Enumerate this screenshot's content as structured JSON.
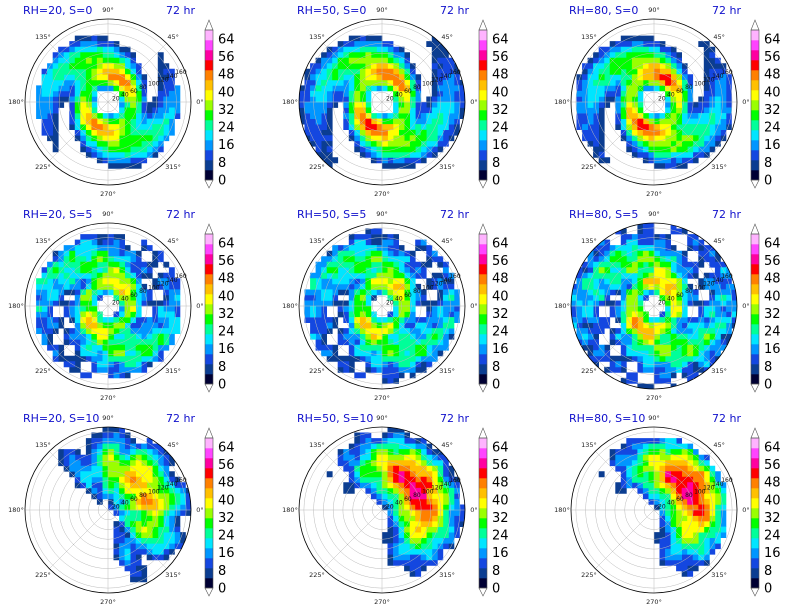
{
  "colors": {
    "title": "#1111cc",
    "levels": [
      "#000033",
      "#0b3d91",
      "#1447e0",
      "#0096ff",
      "#00e5ff",
      "#00ff99",
      "#00ff00",
      "#9aff00",
      "#ffff00",
      "#ffc000",
      "#ff8000",
      "#ff0000",
      "#ff00a0",
      "#ff44ff",
      "#ffb3ff"
    ]
  },
  "chart_data": {
    "type": "polar-contourf",
    "hours_label": "72 hr",
    "angle_labels": [
      "90°",
      "45°",
      "0°",
      "315°",
      "270°",
      "225°",
      "180°",
      "135°"
    ],
    "radial_ticks": [
      20,
      40,
      60,
      80,
      100,
      120,
      140,
      160
    ],
    "colorbar_ticks": [
      0,
      8,
      16,
      24,
      32,
      40,
      48,
      56,
      64
    ],
    "colorbar_range": [
      0,
      68
    ],
    "rows": [
      "S=0",
      "S=5",
      "S=10"
    ],
    "cols": [
      "RH=20",
      "RH=50",
      "RH=80"
    ],
    "panels": [
      {
        "title": "RH=20, S=0",
        "hours": "72 hr",
        "pattern": "spiral",
        "max_level": 11,
        "extent": 0.85
      },
      {
        "title": "RH=50, S=0",
        "hours": "72 hr",
        "pattern": "spiral",
        "max_level": 12,
        "extent": 1.0
      },
      {
        "title": "RH=80, S=0",
        "hours": "72 hr",
        "pattern": "spiral",
        "max_level": 12,
        "extent": 0.95
      },
      {
        "title": "RH=20, S=5",
        "hours": "72 hr",
        "pattern": "spotty",
        "max_level": 11,
        "extent": 0.9
      },
      {
        "title": "RH=50, S=5",
        "hours": "72 hr",
        "pattern": "spotty",
        "max_level": 11,
        "extent": 0.92
      },
      {
        "title": "RH=80, S=5",
        "hours": "72 hr",
        "pattern": "spotty",
        "max_level": 12,
        "extent": 1.0
      },
      {
        "title": "RH=20, S=10",
        "hours": "72 hr",
        "pattern": "sheared-weak",
        "max_level": 11,
        "extent": 1.0
      },
      {
        "title": "RH=50, S=10",
        "hours": "72 hr",
        "pattern": "sheared",
        "max_level": 12,
        "extent": 1.0
      },
      {
        "title": "RH=80, S=10",
        "hours": "72 hr",
        "pattern": "sheared",
        "max_level": 12,
        "extent": 0.9
      }
    ]
  }
}
